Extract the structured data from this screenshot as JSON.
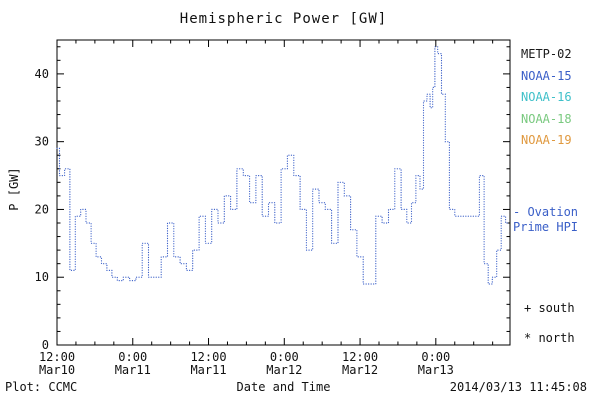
{
  "footer": {
    "plot_credit": "Plot: CCMC",
    "timestamp": "2014/03/13 11:45:08"
  },
  "legend": {
    "satellites": [
      {
        "label": "METP-02",
        "color": "#1a1a1a"
      },
      {
        "label": "NOAA-15",
        "color": "#3a5fc8"
      },
      {
        "label": "NOAA-16",
        "color": "#3fc0c9"
      },
      {
        "label": "NOAA-18",
        "color": "#79c97f"
      },
      {
        "label": "NOAA-19",
        "color": "#e0993f"
      }
    ],
    "ovation_line1": "- Ovation",
    "ovation_line2": "Prime HPI",
    "ovation_color": "#3a5fc8",
    "south_marker": "+ south",
    "north_marker": "* north"
  },
  "chart_data": {
    "type": "line",
    "step": true,
    "line_style": "dotted",
    "title": "Hemispheric Power [GW]",
    "xlabel": "Date and Time",
    "ylabel": "P [GW]",
    "ylim": [
      0,
      45
    ],
    "yticks": [
      0,
      10,
      20,
      30,
      40
    ],
    "x_hours_span": 71.75,
    "x_start": "2014/03/10 12:00",
    "xticks": [
      {
        "hour": 0,
        "time": "12:00",
        "date": "Mar10"
      },
      {
        "hour": 12,
        "time": "0:00",
        "date": "Mar11"
      },
      {
        "hour": 24,
        "time": "12:00",
        "date": "Mar11"
      },
      {
        "hour": 36,
        "time": "0:00",
        "date": "Mar12"
      },
      {
        "hour": 48,
        "time": "12:00",
        "date": "Mar12"
      },
      {
        "hour": 60,
        "time": "0:00",
        "date": "Mar13"
      }
    ],
    "series": [
      {
        "name": "NOAA-15 Ovation Prime HPI",
        "color": "#3a5fc8",
        "x_hours": [
          0,
          0.8,
          1.6,
          2.5,
          3.3,
          4.2,
          5.0,
          5.8,
          6.6,
          7.5,
          8.3,
          9.1,
          10.0,
          11.0,
          12.0,
          13.0,
          14.0,
          15.0,
          16.0,
          17.0,
          18.0,
          19.0,
          20.0,
          21.0,
          22.0,
          23.0,
          24.0,
          25.0,
          26.0,
          27.0,
          28.0,
          29.0,
          30.0,
          31.0,
          32.0,
          33.0,
          34.0,
          35.0,
          36.0,
          37.0,
          38.0,
          39.0,
          40.0,
          41.0,
          42.0,
          43.0,
          44.0,
          45.0,
          46.0,
          47.0,
          48.0,
          49.0,
          50.0,
          51.0,
          52.0,
          53.0,
          54.0,
          55.0,
          55.8,
          56.5,
          57.2,
          57.8,
          58.3,
          58.9,
          59.3,
          59.7,
          60.0,
          60.6,
          61.2,
          61.8,
          62.5,
          63.5,
          65.0,
          66.5,
          67.3,
          68.0,
          68.6,
          69.3,
          70.0,
          70.7,
          71.4
        ],
        "values": [
          29,
          25,
          26,
          11,
          19,
          20,
          18,
          15,
          13,
          12,
          11,
          10,
          9.5,
          10,
          9.5,
          10,
          15,
          10,
          10,
          13,
          18,
          13,
          12,
          11,
          14,
          19,
          15,
          20,
          18,
          22,
          20,
          26,
          25,
          21,
          25,
          19,
          21,
          18,
          26,
          28,
          25,
          20,
          14,
          23,
          21,
          20,
          15,
          24,
          22,
          17,
          13,
          9,
          9,
          19,
          18,
          20,
          26,
          20,
          18,
          21,
          25,
          23,
          36,
          37,
          35,
          38,
          44,
          43,
          37,
          30,
          20,
          19,
          19,
          19,
          25,
          12,
          9,
          10,
          14,
          19,
          18
        ]
      }
    ]
  }
}
